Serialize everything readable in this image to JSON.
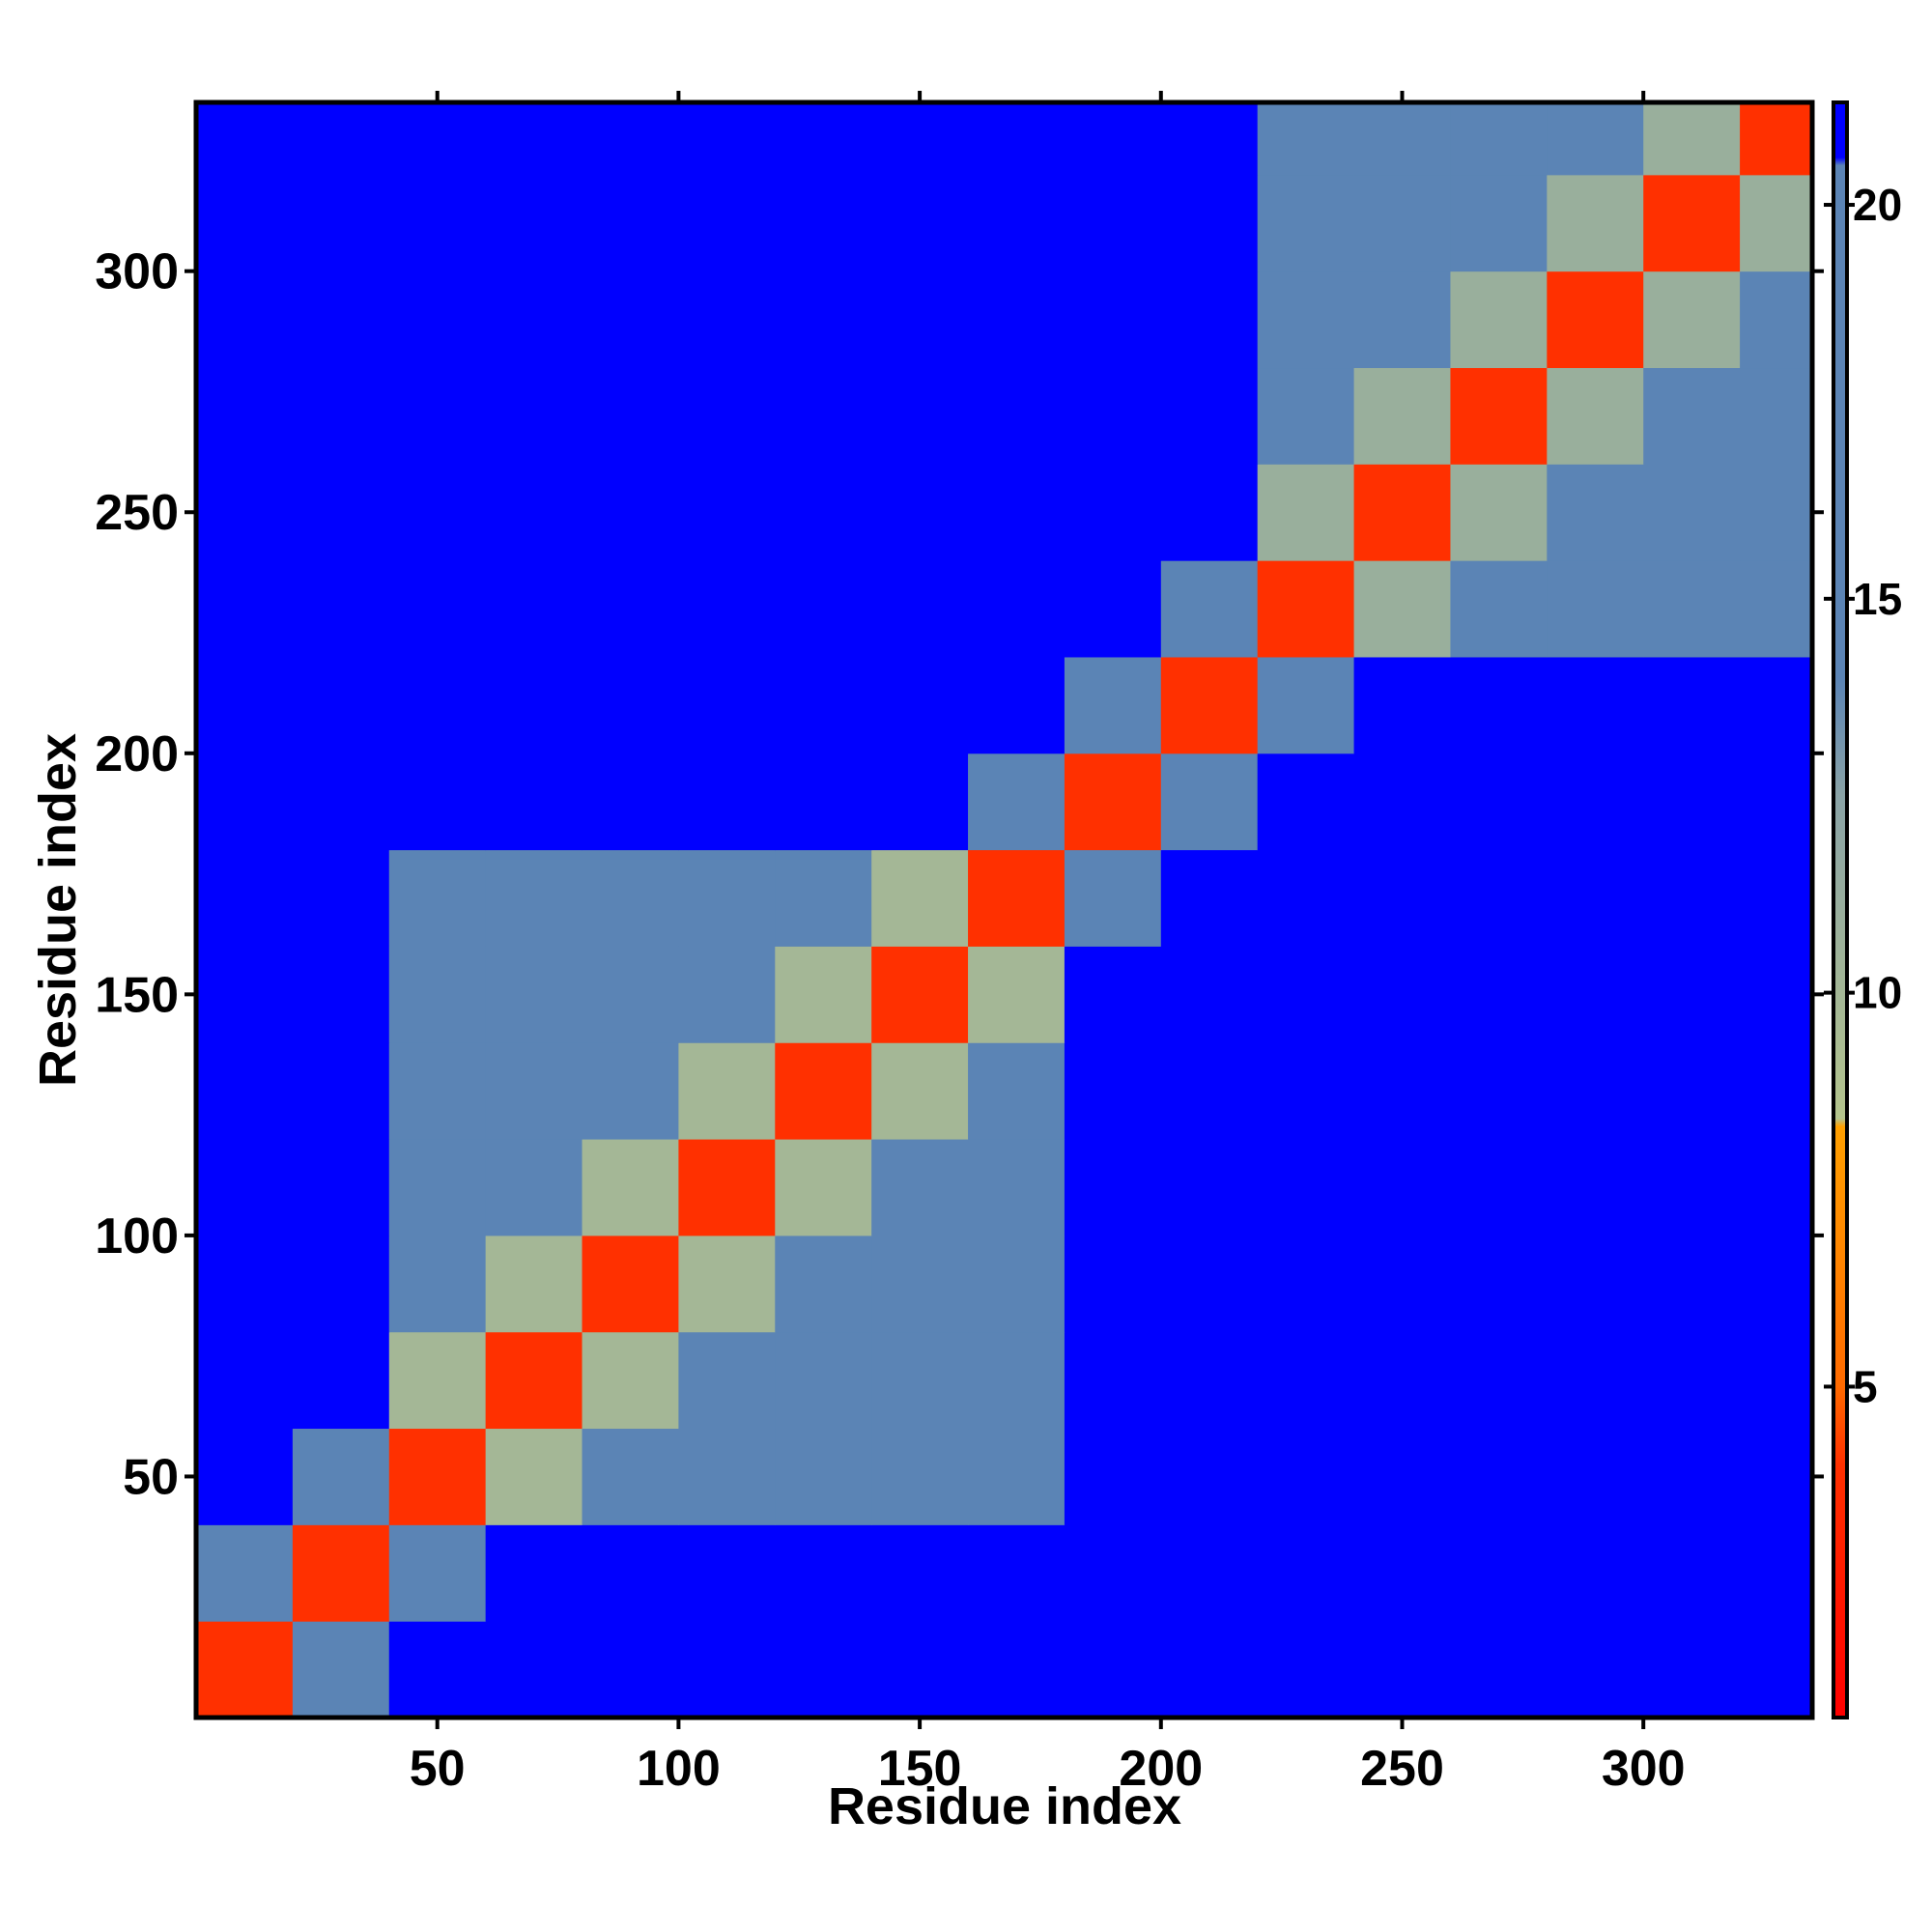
{
  "chart_data": {
    "type": "heatmap",
    "x_label": "Residue index",
    "y_label": "Residue index",
    "x_bins": [
      0,
      20,
      40,
      60,
      80,
      100,
      120,
      140,
      160,
      180,
      200,
      220,
      240,
      260,
      280,
      300,
      320,
      335
    ],
    "y_bins": [
      0,
      20,
      40,
      60,
      80,
      100,
      120,
      140,
      160,
      180,
      200,
      220,
      240,
      260,
      280,
      300,
      320,
      335
    ],
    "z": [
      [
        4,
        14,
        21,
        21,
        21,
        21,
        21,
        21,
        21,
        21,
        21,
        21,
        21,
        21,
        21,
        21,
        21
      ],
      [
        14,
        4,
        14,
        21,
        21,
        21,
        21,
        21,
        21,
        21,
        21,
        21,
        21,
        21,
        21,
        21,
        21
      ],
      [
        21,
        14,
        4,
        10,
        16,
        16,
        16,
        16,
        16,
        21,
        21,
        21,
        21,
        21,
        21,
        21,
        21
      ],
      [
        21,
        21,
        10,
        4,
        10,
        16,
        16,
        16,
        16,
        21,
        21,
        21,
        21,
        21,
        21,
        21,
        21
      ],
      [
        21,
        21,
        16,
        10,
        4,
        10,
        16,
        16,
        16,
        21,
        21,
        21,
        21,
        21,
        21,
        21,
        21
      ],
      [
        21,
        21,
        16,
        16,
        10,
        4,
        10,
        16,
        16,
        21,
        21,
        21,
        21,
        21,
        21,
        21,
        21
      ],
      [
        21,
        21,
        16,
        16,
        16,
        10,
        4,
        10,
        16,
        21,
        21,
        21,
        21,
        21,
        21,
        21,
        21
      ],
      [
        21,
        21,
        16,
        16,
        16,
        16,
        10,
        4,
        10,
        21,
        21,
        21,
        21,
        21,
        21,
        21,
        21
      ],
      [
        21,
        21,
        16,
        16,
        16,
        16,
        16,
        10,
        4,
        14,
        21,
        21,
        21,
        21,
        21,
        21,
        21
      ],
      [
        21,
        21,
        21,
        21,
        21,
        21,
        21,
        21,
        14,
        4,
        14,
        21,
        21,
        21,
        21,
        21,
        21
      ],
      [
        21,
        21,
        21,
        21,
        21,
        21,
        21,
        21,
        21,
        14,
        4,
        14,
        21,
        21,
        21,
        21,
        21
      ],
      [
        21,
        21,
        21,
        21,
        21,
        21,
        21,
        21,
        21,
        21,
        14,
        4,
        11,
        16,
        16,
        16,
        16
      ],
      [
        21,
        21,
        21,
        21,
        21,
        21,
        21,
        21,
        21,
        21,
        21,
        11,
        4,
        11,
        16,
        16,
        16
      ],
      [
        21,
        21,
        21,
        21,
        21,
        21,
        21,
        21,
        21,
        21,
        21,
        16,
        11,
        4,
        11,
        16,
        16
      ],
      [
        21,
        21,
        21,
        21,
        21,
        21,
        21,
        21,
        21,
        21,
        21,
        16,
        16,
        11,
        4,
        11,
        16
      ],
      [
        21,
        21,
        21,
        21,
        21,
        21,
        21,
        21,
        21,
        21,
        21,
        16,
        16,
        16,
        11,
        4,
        11
      ],
      [
        21,
        21,
        21,
        21,
        21,
        21,
        21,
        21,
        21,
        21,
        21,
        16,
        16,
        16,
        16,
        11,
        4
      ]
    ],
    "xlim": [
      0,
      335
    ],
    "ylim": [
      0,
      335
    ],
    "xticks": [
      50,
      100,
      150,
      200,
      250,
      300
    ],
    "yticks": [
      50,
      100,
      150,
      200,
      250,
      300
    ],
    "colorbar_lim": [
      0.8,
      21.3
    ],
    "colorbar_ticks": [
      5,
      10,
      15,
      20
    ],
    "colorscale": [
      [
        0.8,
        "#ff0000"
      ],
      [
        4,
        "#ff3000"
      ],
      [
        5,
        "#ff6a00"
      ],
      [
        8.3,
        "#ffa000"
      ],
      [
        8.4,
        "#b4c48c"
      ],
      [
        12.5,
        "#8aa3a6"
      ],
      [
        14,
        "#5b84b5"
      ],
      [
        20.5,
        "#5b84b5"
      ],
      [
        20.6,
        "#0000ff"
      ],
      [
        21.3,
        "#0000ff"
      ]
    ]
  }
}
